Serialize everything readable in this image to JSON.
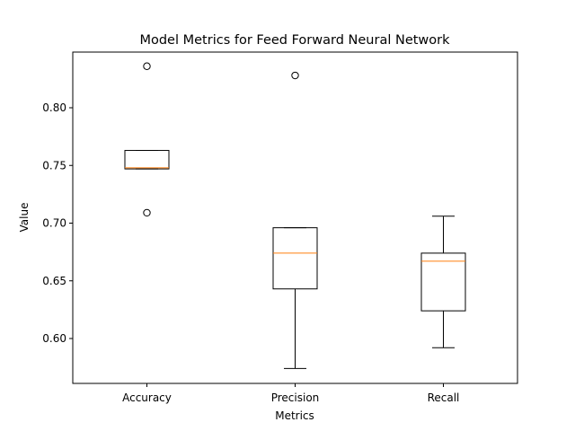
{
  "chart_data": {
    "type": "box",
    "title": "Model Metrics for Feed Forward Neural Network",
    "xlabel": "Metrics",
    "ylabel": "Value",
    "ylim": [
      0.56,
      0.85
    ],
    "y_ticks": [
      0.6,
      0.65,
      0.7,
      0.75,
      0.8
    ],
    "y_tick_labels": [
      "0.60",
      "0.65",
      "0.70",
      "0.75",
      "0.80"
    ],
    "grid": false,
    "box_color": "#000000",
    "median_color": "#ff7f0e",
    "categories": [
      "Accuracy",
      "Precision",
      "Recall"
    ],
    "boxes": [
      {
        "category": "Accuracy",
        "whisker_low": 0.747,
        "q1": 0.747,
        "median": 0.748,
        "q3": 0.763,
        "whisker_high": 0.763,
        "outliers": [
          0.836,
          0.709
        ]
      },
      {
        "category": "Precision",
        "whisker_low": 0.574,
        "q1": 0.643,
        "median": 0.674,
        "q3": 0.696,
        "whisker_high": 0.696,
        "outliers": [
          0.828
        ]
      },
      {
        "category": "Recall",
        "whisker_low": 0.592,
        "q1": 0.624,
        "median": 0.667,
        "q3": 0.674,
        "whisker_high": 0.706,
        "outliers": []
      }
    ]
  }
}
